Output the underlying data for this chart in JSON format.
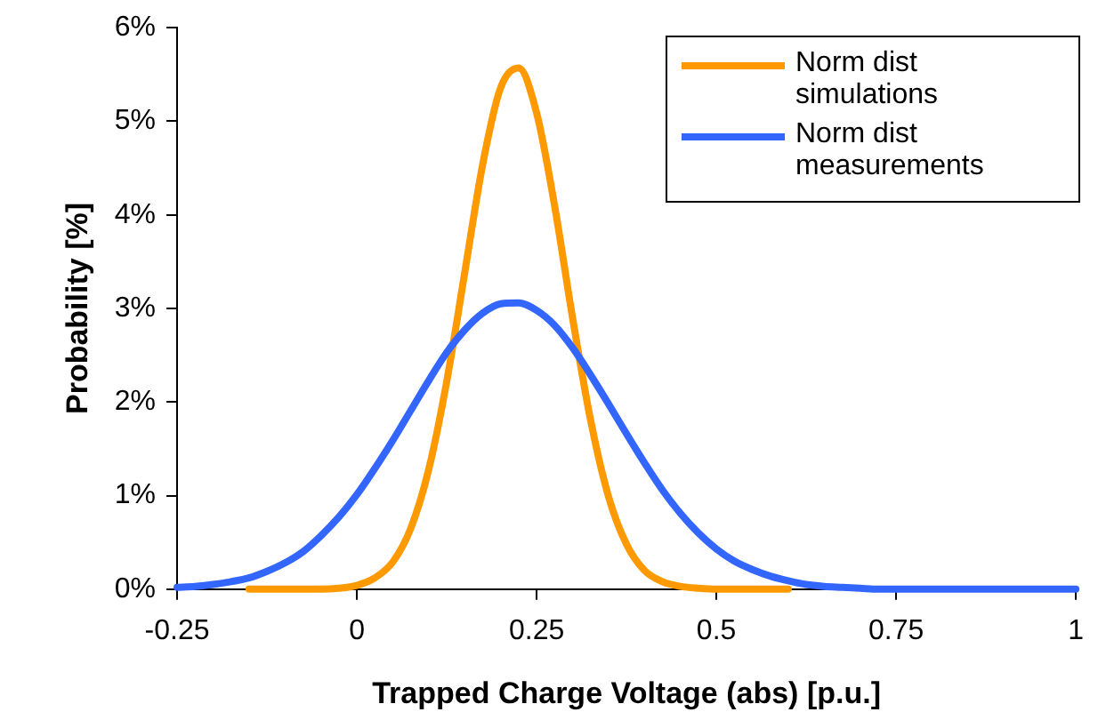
{
  "chart_data": {
    "type": "line",
    "xlabel": "Trapped Charge Voltage (abs) [p.u.]",
    "ylabel": "Probability [%]",
    "x": [
      -0.25,
      -0.225,
      -0.2,
      -0.175,
      -0.15,
      -0.125,
      -0.1,
      -0.075,
      -0.05,
      -0.025,
      0,
      0.025,
      0.05,
      0.075,
      0.1,
      0.125,
      0.15,
      0.175,
      0.2,
      0.225,
      0.25,
      0.275,
      0.3,
      0.325,
      0.35,
      0.375,
      0.4,
      0.425,
      0.45,
      0.475,
      0.5,
      0.525,
      0.55,
      0.575,
      0.6,
      0.625,
      0.65,
      0.675,
      0.7,
      0.725,
      0.75,
      1
    ],
    "series": [
      {
        "name": "Norm dist simulations",
        "color": "#ff9900",
        "values": [
          null,
          null,
          null,
          null,
          0,
          0,
          0,
          0,
          0,
          0.01,
          0.04,
          0.12,
          0.29,
          0.65,
          1.28,
          2.22,
          3.38,
          4.54,
          5.36,
          5.57,
          5.09,
          4.1,
          2.9,
          1.81,
          0.99,
          0.48,
          0.2,
          0.08,
          0.03,
          0.01,
          0,
          0,
          0,
          0,
          0,
          null,
          null,
          null,
          null,
          null,
          null,
          null
        ]
      },
      {
        "name": "Norm dist measurements",
        "color": "#3366ff",
        "values": [
          0.02,
          0.03,
          0.05,
          0.08,
          0.12,
          0.19,
          0.28,
          0.4,
          0.57,
          0.77,
          1.01,
          1.29,
          1.59,
          1.91,
          2.23,
          2.53,
          2.77,
          2.95,
          3.05,
          3.06,
          2.98,
          2.82,
          2.58,
          2.29,
          1.98,
          1.66,
          1.35,
          1.06,
          0.81,
          0.6,
          0.43,
          0.3,
          0.21,
          0.14,
          0.09,
          0.05,
          0.03,
          0.02,
          0.01,
          0,
          0,
          0
        ]
      }
    ],
    "xlim": [
      -0.25,
      1
    ],
    "xticks": [
      -0.25,
      0,
      0.25,
      0.5,
      0.75,
      1
    ],
    "ylim": [
      0,
      6
    ],
    "yticks": [
      {
        "value": 0,
        "label": "0%"
      },
      {
        "value": 1,
        "label": "1%"
      },
      {
        "value": 2,
        "label": "2%"
      },
      {
        "value": 3,
        "label": "3%"
      },
      {
        "value": 4,
        "label": "4%"
      },
      {
        "value": 5,
        "label": "5%"
      },
      {
        "value": 6,
        "label": "6%"
      }
    ],
    "grid": false,
    "legend": "top right",
    "marker": "none",
    "line_style": "solid"
  }
}
